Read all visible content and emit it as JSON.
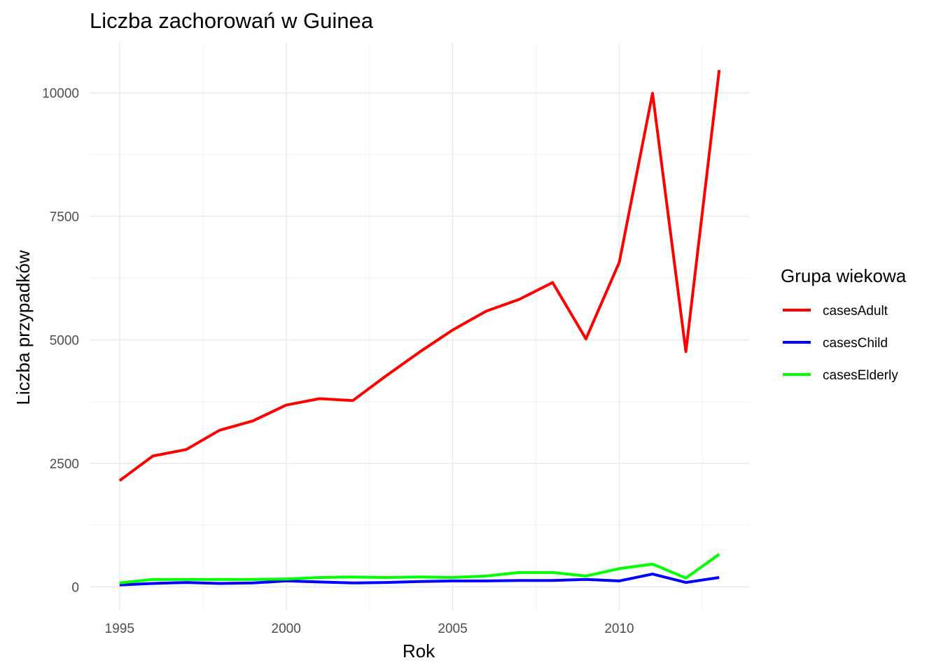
{
  "chart_data": {
    "type": "line",
    "title": "Liczba zachorowań w Guinea",
    "xlabel": "Rok",
    "ylabel": "Liczba przypadków",
    "x": [
      1995,
      1996,
      1997,
      1998,
      1999,
      2000,
      2001,
      2002,
      2003,
      2004,
      2005,
      2006,
      2007,
      2008,
      2009,
      2010,
      2011,
      2012,
      2013
    ],
    "xlim": [
      1994.1,
      2013.9
    ],
    "ylim": [
      -490,
      11000
    ],
    "x_ticks": [
      1995,
      2000,
      2005,
      2010
    ],
    "y_ticks": [
      0,
      2500,
      5000,
      7500,
      10000
    ],
    "x_tick_labels": [
      "1995",
      "2000",
      "2005",
      "2010"
    ],
    "y_tick_labels": [
      "0",
      "2500",
      "5000",
      "7500",
      "10000"
    ],
    "grid": true,
    "legend_position": "right",
    "legend_title": "Grupa wiekowa",
    "series": [
      {
        "name": "casesAdult",
        "color": "#ff0000",
        "values": [
          2150,
          2650,
          2780,
          3170,
          3360,
          3680,
          3810,
          3770,
          4270,
          4750,
          5200,
          5580,
          5820,
          6160,
          5020,
          6570,
          9990,
          4760,
          10460
        ]
      },
      {
        "name": "casesChild",
        "color": "#0000ff",
        "values": [
          40,
          70,
          90,
          70,
          80,
          120,
          100,
          80,
          90,
          110,
          120,
          120,
          130,
          130,
          150,
          120,
          260,
          90,
          190
        ]
      },
      {
        "name": "casesElderly",
        "color": "#00ff00",
        "values": [
          80,
          150,
          150,
          150,
          150,
          160,
          190,
          200,
          190,
          200,
          190,
          220,
          290,
          290,
          220,
          370,
          460,
          180,
          660
        ]
      }
    ]
  }
}
